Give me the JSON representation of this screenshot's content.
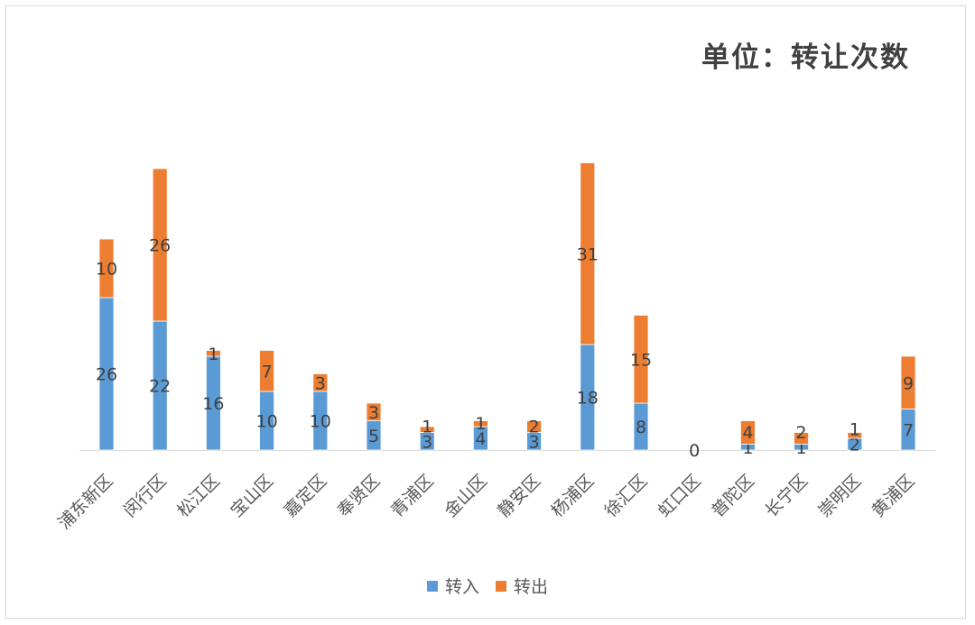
{
  "chart_data": {
    "type": "bar",
    "stacked": true,
    "title": "单位：转让次数",
    "categories": [
      "浦东新区",
      "闵行区",
      "松江区",
      "宝山区",
      "嘉定区",
      "奉贤区",
      "青浦区",
      "金山区",
      "静安区",
      "杨浦区",
      "徐汇区",
      "虹口区",
      "普陀区",
      "长宁区",
      "崇明区",
      "黄浦区"
    ],
    "series": [
      {
        "name": "转入",
        "color": "#5b9bd5",
        "values": [
          26,
          22,
          16,
          10,
          10,
          5,
          3,
          4,
          3,
          18,
          8,
          0,
          1,
          1,
          2,
          7
        ]
      },
      {
        "name": "转出",
        "color": "#ed7d31",
        "values": [
          10,
          26,
          1,
          7,
          3,
          3,
          1,
          1,
          2,
          31,
          15,
          0,
          4,
          2,
          1,
          9
        ]
      }
    ],
    "data_labels": true,
    "legend": "bottom",
    "grid": false
  }
}
